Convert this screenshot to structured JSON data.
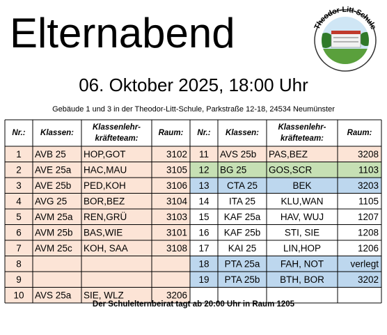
{
  "title": "Elternabend",
  "logo": {
    "text": "Theodor-Litt-Schule"
  },
  "subtitle": "06. Oktober 2025, 18:00 Uhr",
  "address": "Gebäude 1 und 3 in der Theodor-Litt-Schule, Parkstraße 12-18, 24534 Neumünster",
  "table": {
    "header": [
      "Nr.:",
      "Klassen:",
      [
        "Klassenlehr-",
        "kräfteteam:"
      ],
      "Raum:",
      "Nr.:",
      "Klassen:",
      [
        "Klassenlehr-",
        "kräfteteam:"
      ],
      "Raum:"
    ],
    "rows": [
      {
        "left": {
          "nr": "1",
          "class": "AVB 25",
          "teachers": "HOP,GOT",
          "room": "3102",
          "color": "#fce4d6"
        },
        "right": {
          "nr": "11",
          "class": "AVS 25b",
          "teachers": "PAS,BEZ",
          "room": "3208",
          "color": "#fce4d6"
        }
      },
      {
        "left": {
          "nr": "2",
          "class": "AVE 25a",
          "teachers": "HAC,MAU",
          "room": "3105",
          "color": "#fce4d6"
        },
        "right": {
          "nr": "12",
          "class": "BG 25",
          "teachers": "GOS,SCR",
          "room": "1103",
          "color": "#c6e0b4"
        }
      },
      {
        "left": {
          "nr": "3",
          "class": "AVE 25b",
          "teachers": "PED,KOH",
          "room": "3106",
          "color": "#fce4d6"
        },
        "right": {
          "nr": "13",
          "class": "CTA 25",
          "teachers": "BEK",
          "room": "3203",
          "color": "#bdd7ee",
          "centered": true
        }
      },
      {
        "left": {
          "nr": "4",
          "class": "AVG 25",
          "teachers": "BOR,BEZ",
          "room": "3104",
          "color": "#fce4d6"
        },
        "right": {
          "nr": "14",
          "class": "ITA 25",
          "teachers": "KLU,WAN",
          "room": "1105",
          "color": "#ffffff",
          "centered": true
        }
      },
      {
        "left": {
          "nr": "5",
          "class": "AVM 25a",
          "teachers": "REN,GRÜ",
          "room": "3103",
          "color": "#fce4d6"
        },
        "right": {
          "nr": "15",
          "class": "KAF 25a",
          "teachers": "HAV, WUJ",
          "room": "1207",
          "color": "#ffffff",
          "centered": true
        }
      },
      {
        "left": {
          "nr": "6",
          "class": "AVM 25b",
          "teachers": "BAS,WIE",
          "room": "3101",
          "color": "#fce4d6"
        },
        "right": {
          "nr": "16",
          "class": "KAF 25b",
          "teachers": "STI, SIE",
          "room": "1208",
          "color": "#ffffff",
          "centered": true
        }
      },
      {
        "left": {
          "nr": "7",
          "class": "AVM 25c",
          "teachers": "KOH, SAA",
          "room": "3108",
          "color": "#fce4d6"
        },
        "right": {
          "nr": "17",
          "class": "KAI 25",
          "teachers": "LIN,HOP",
          "room": "1206",
          "color": "#ffffff",
          "centered": true
        }
      },
      {
        "left": {
          "nr": "8",
          "color": "#fce4d6"
        },
        "right": {
          "nr": "18",
          "class": "PTA 25a",
          "teachers": "FAH, NOT",
          "room": "verlegt",
          "color": "#bdd7ee",
          "centered": true
        }
      },
      {
        "left": {
          "nr": "9",
          "color": "#fce4d6"
        },
        "right": {
          "nr": "19",
          "class": "PTA 25b",
          "teachers": "BTH, BOR",
          "room": "3202",
          "color": "#bdd7ee",
          "centered": true
        }
      },
      {
        "left": {
          "nr": "10",
          "class": "AVS 25a",
          "teachers": "SIE, WLZ",
          "room": "3206",
          "color": "#fce4d6"
        },
        "right": {
          "color": "#ffffff"
        }
      }
    ]
  },
  "footer": "Der Schulelternbeirat tagt ab 20:00 Uhr in Raum 1205"
}
